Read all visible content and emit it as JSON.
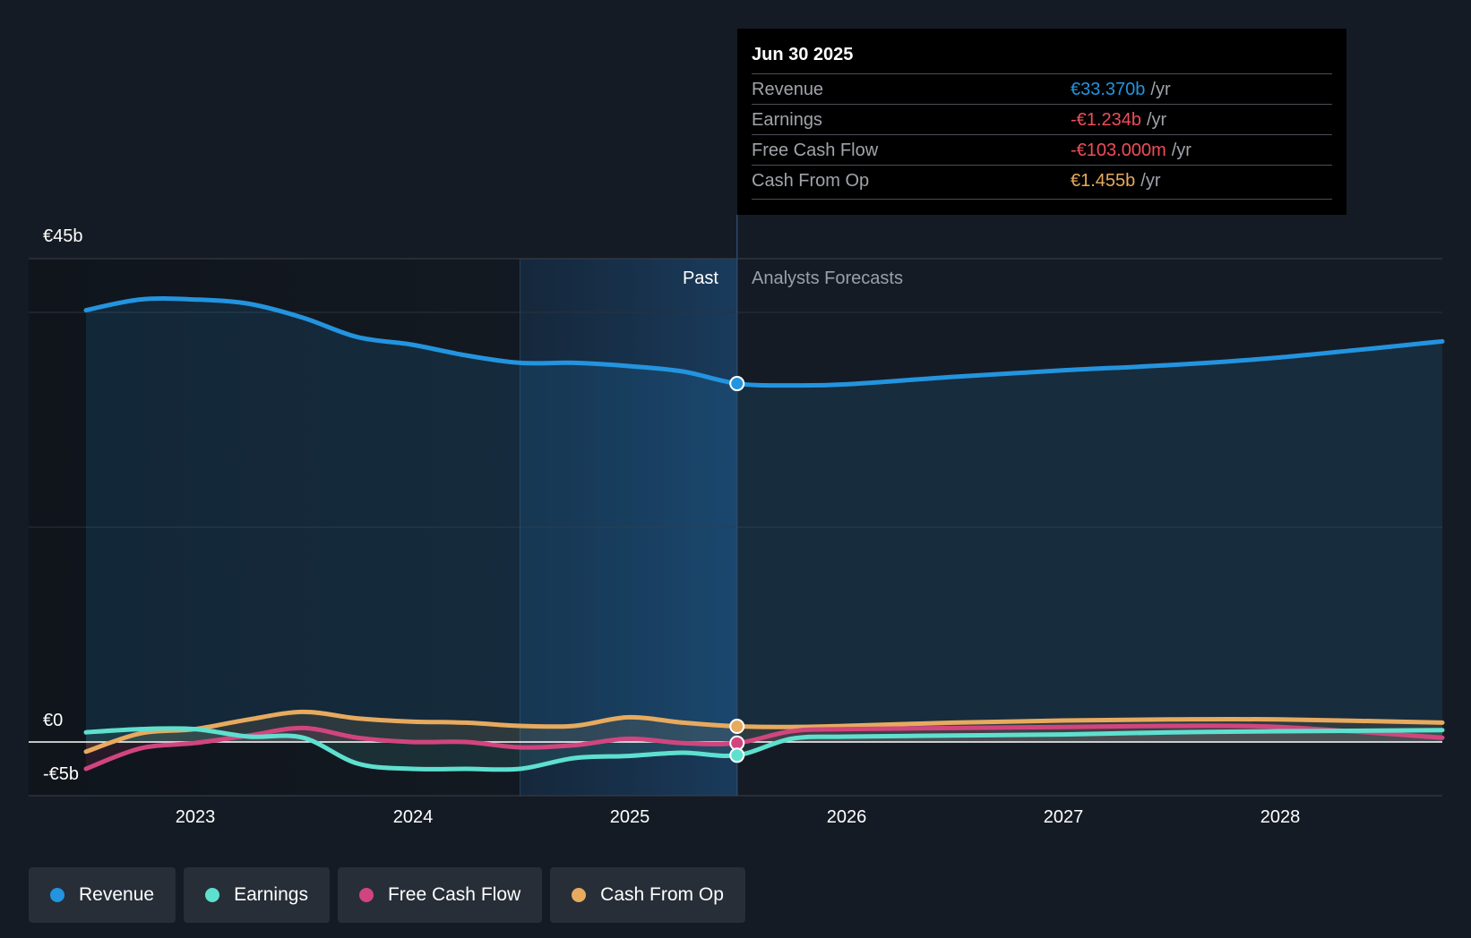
{
  "colors": {
    "background": "#151b24",
    "revenue": "#2394df",
    "earnings": "#5ee0cf",
    "free_cash_flow": "#d1457e",
    "cash_from_op": "#e7aa5e",
    "earnings_negative": "#ef4d5a",
    "past_band": "#1a3a5a",
    "tooltip_bg": "#000000"
  },
  "tooltip": {
    "date": "Jun 30 2025",
    "rows": [
      {
        "name": "Revenue",
        "value": "€33.370b",
        "unit": "/yr",
        "color": "#2394df"
      },
      {
        "name": "Earnings",
        "value": "-€1.234b",
        "unit": "/yr",
        "color": "#ef4d5a"
      },
      {
        "name": "Free Cash Flow",
        "value": "-€103.000m",
        "unit": "/yr",
        "color": "#ef4d5a"
      },
      {
        "name": "Cash From Op",
        "value": "€1.455b",
        "unit": "/yr",
        "color": "#e7aa5e"
      }
    ]
  },
  "labels": {
    "past": "Past",
    "forecast": "Analysts Forecasts"
  },
  "legend": [
    {
      "label": "Revenue",
      "color": "#2394df"
    },
    {
      "label": "Earnings",
      "color": "#5ee0cf"
    },
    {
      "label": "Free Cash Flow",
      "color": "#d1457e"
    },
    {
      "label": "Cash From Op",
      "color": "#e7aa5e"
    }
  ],
  "chart_data": {
    "type": "line",
    "title": "",
    "xlabel": "",
    "ylabel": "",
    "x_ticks": [
      2023,
      2024,
      2025,
      2026,
      2027,
      2028
    ],
    "y_tick_labels": [
      {
        "value": 45,
        "label": "€45b"
      },
      {
        "value": 0,
        "label": "€0"
      },
      {
        "value": -5,
        "label": "-€5b"
      }
    ],
    "ylim": [
      -5,
      45
    ],
    "xlim": [
      2022.5,
      2028.75
    ],
    "past_band": [
      2024.5,
      2025.5
    ],
    "highlight_x": 2025.5,
    "series": [
      {
        "name": "Revenue",
        "color": "#2394df",
        "x": [
          2022.5,
          2022.75,
          2023.0,
          2023.25,
          2023.5,
          2023.75,
          2024.0,
          2024.25,
          2024.5,
          2024.75,
          2025.0,
          2025.25,
          2025.5,
          2025.75,
          2026.0,
          2026.5,
          2027.0,
          2027.5,
          2028.0,
          2028.75
        ],
        "values": [
          40.2,
          41.2,
          41.2,
          40.8,
          39.5,
          37.7,
          37.0,
          36.0,
          35.3,
          35.3,
          35.0,
          34.5,
          33.37,
          33.2,
          33.3,
          34.0,
          34.6,
          35.1,
          35.8,
          37.3
        ]
      },
      {
        "name": "Earnings",
        "color": "#5ee0cf",
        "x": [
          2022.5,
          2022.75,
          2023.0,
          2023.25,
          2023.5,
          2023.75,
          2024.0,
          2024.25,
          2024.5,
          2024.75,
          2025.0,
          2025.25,
          2025.5,
          2025.75,
          2026.0,
          2026.5,
          2027.0,
          2027.5,
          2028.0,
          2028.75
        ],
        "values": [
          0.9,
          1.2,
          1.2,
          0.5,
          0.4,
          -2.0,
          -2.5,
          -2.5,
          -2.5,
          -1.5,
          -1.3,
          -1.0,
          -1.234,
          0.3,
          0.5,
          0.6,
          0.7,
          0.9,
          1.0,
          1.1
        ]
      },
      {
        "name": "Free Cash Flow",
        "color": "#d1457e",
        "x": [
          2022.5,
          2022.75,
          2023.0,
          2023.25,
          2023.5,
          2023.75,
          2024.0,
          2024.25,
          2024.5,
          2024.75,
          2025.0,
          2025.25,
          2025.5,
          2025.75,
          2026.0,
          2026.5,
          2027.0,
          2027.5,
          2028.0,
          2028.75
        ],
        "values": [
          -2.5,
          -0.6,
          -0.1,
          0.6,
          1.3,
          0.4,
          0.0,
          0.0,
          -0.5,
          -0.3,
          0.3,
          -0.1,
          -0.103,
          1.0,
          1.2,
          1.3,
          1.4,
          1.5,
          1.4,
          0.4
        ]
      },
      {
        "name": "Cash From Op",
        "color": "#e7aa5e",
        "x": [
          2022.5,
          2022.75,
          2023.0,
          2023.25,
          2023.5,
          2023.75,
          2024.0,
          2024.25,
          2024.5,
          2024.75,
          2025.0,
          2025.25,
          2025.5,
          2025.75,
          2026.0,
          2026.5,
          2027.0,
          2027.5,
          2028.0,
          2028.75
        ],
        "values": [
          -0.9,
          0.8,
          1.2,
          2.1,
          2.8,
          2.2,
          1.9,
          1.8,
          1.5,
          1.5,
          2.3,
          1.8,
          1.455,
          1.4,
          1.5,
          1.8,
          2.0,
          2.1,
          2.1,
          1.8
        ]
      }
    ]
  }
}
